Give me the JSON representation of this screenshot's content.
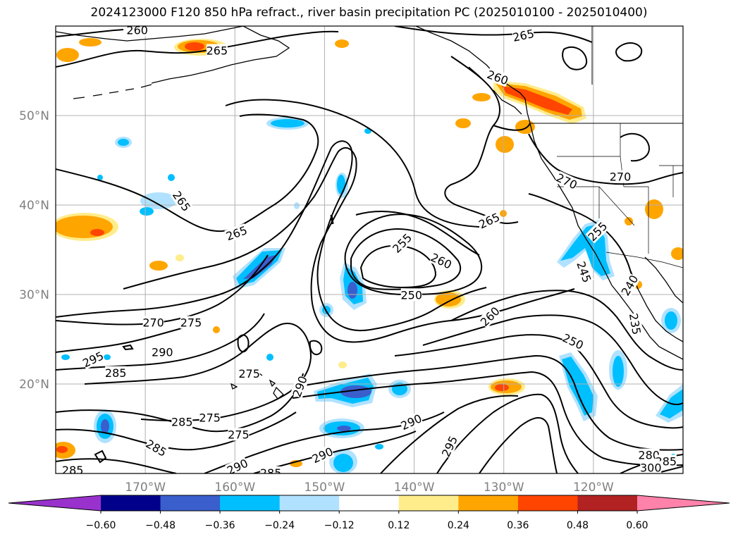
{
  "title": "2024123000 F120 850 hPa refract., river basin precipitation PC (2025010100 - 2025010400)",
  "map": {
    "projection": "cylindrical",
    "lon_range": [
      -180,
      -110
    ],
    "lat_range": [
      10,
      60
    ],
    "lat_ticks": [
      {
        "value": 20,
        "label": "20°N"
      },
      {
        "value": 30,
        "label": "30°N"
      },
      {
        "value": 40,
        "label": "40°N"
      },
      {
        "value": 50,
        "label": "50°N"
      }
    ],
    "lon_ticks": [
      {
        "value": -170,
        "label": "170°W"
      },
      {
        "value": -160,
        "label": "160°W"
      },
      {
        "value": -150,
        "label": "150°W"
      },
      {
        "value": -140,
        "label": "140°W"
      },
      {
        "value": -130,
        "label": "130°W"
      },
      {
        "value": -120,
        "label": "120°W"
      }
    ],
    "grid": true,
    "contour_labels": [
      {
        "text": "260",
        "lon": -170.9,
        "lat": 59.5,
        "angle": 0
      },
      {
        "text": "265",
        "lon": -162.0,
        "lat": 57.2,
        "angle": 0
      },
      {
        "text": "265",
        "lon": -127.8,
        "lat": 58.9,
        "angle": -12
      },
      {
        "text": "260",
        "lon": -130.7,
        "lat": 54.2,
        "angle": 20
      },
      {
        "text": "270",
        "lon": -123.0,
        "lat": 42.6,
        "angle": 25
      },
      {
        "text": "270",
        "lon": -117.0,
        "lat": 43.1,
        "angle": 0
      },
      {
        "text": "265",
        "lon": -166.0,
        "lat": 40.4,
        "angle": 55
      },
      {
        "text": "265",
        "lon": -159.8,
        "lat": 36.8,
        "angle": -20
      },
      {
        "text": "265",
        "lon": -131.6,
        "lat": 38.2,
        "angle": -25
      },
      {
        "text": "255",
        "lon": -141.3,
        "lat": 35.7,
        "angle": -45
      },
      {
        "text": "260",
        "lon": -137.0,
        "lat": 33.7,
        "angle": 25
      },
      {
        "text": "255",
        "lon": -119.5,
        "lat": 37.0,
        "angle": -45
      },
      {
        "text": "250",
        "lon": -140.3,
        "lat": 29.9,
        "angle": 0
      },
      {
        "text": "245",
        "lon": -121.1,
        "lat": 32.5,
        "angle": 70
      },
      {
        "text": "240",
        "lon": -115.9,
        "lat": 31.0,
        "angle": -60
      },
      {
        "text": "235",
        "lon": -115.4,
        "lat": 26.7,
        "angle": 80
      },
      {
        "text": "260",
        "lon": -131.5,
        "lat": 27.5,
        "angle": -45
      },
      {
        "text": "250",
        "lon": -122.3,
        "lat": 24.7,
        "angle": 25
      },
      {
        "text": "270",
        "lon": -169.1,
        "lat": 26.8,
        "angle": 0
      },
      {
        "text": "275",
        "lon": -164.9,
        "lat": 26.8,
        "angle": 0
      },
      {
        "text": "290",
        "lon": -168.1,
        "lat": 23.5,
        "angle": 0
      },
      {
        "text": "295",
        "lon": -175.8,
        "lat": 22.7,
        "angle": -25
      },
      {
        "text": "285",
        "lon": -173.3,
        "lat": 21.2,
        "angle": 0
      },
      {
        "text": "275",
        "lon": -158.4,
        "lat": 21.1,
        "angle": 0
      },
      {
        "text": "290",
        "lon": -152.7,
        "lat": 19.7,
        "angle": -70
      },
      {
        "text": "275",
        "lon": -162.8,
        "lat": 16.2,
        "angle": 0
      },
      {
        "text": "275",
        "lon": -159.6,
        "lat": 14.3,
        "angle": 0
      },
      {
        "text": "285",
        "lon": -165.9,
        "lat": 15.7,
        "angle": 0
      },
      {
        "text": "285",
        "lon": -168.8,
        "lat": 12.8,
        "angle": 30
      },
      {
        "text": "285",
        "lon": -178.1,
        "lat": 10.3,
        "angle": 0
      },
      {
        "text": "290",
        "lon": -159.7,
        "lat": 10.7,
        "angle": -25
      },
      {
        "text": "285",
        "lon": -156.0,
        "lat": 10.0,
        "angle": 0
      },
      {
        "text": "290",
        "lon": -150.2,
        "lat": 12.0,
        "angle": -25
      },
      {
        "text": "290",
        "lon": -140.3,
        "lat": 15.7,
        "angle": -25
      },
      {
        "text": "295",
        "lon": -136.0,
        "lat": 13.0,
        "angle": -65
      },
      {
        "text": "280",
        "lon": -113.8,
        "lat": 12.0,
        "angle": 0
      },
      {
        "text": "285",
        "lon": -111.9,
        "lat": 11.3,
        "angle": 0
      },
      {
        "text": "300",
        "lon": -113.6,
        "lat": 10.6,
        "angle": 0
      }
    ]
  },
  "colorbar": {
    "levels": [
      -0.6,
      -0.48,
      -0.36,
      -0.24,
      -0.12,
      0.12,
      0.24,
      0.36,
      0.48,
      0.6
    ],
    "tick_labels": [
      "−0.60",
      "−0.48",
      "−0.36",
      "−0.24",
      "−0.12",
      "0.12",
      "0.24",
      "0.36",
      "0.48",
      "0.60"
    ],
    "colors": [
      "#9932cc",
      "#00008b",
      "#3a5fcd",
      "#00bfff",
      "#b0e2ff",
      "#ffffff",
      "#ffec8b",
      "#ffa500",
      "#ff4500",
      "#b22222",
      "#ff82ab"
    ]
  }
}
